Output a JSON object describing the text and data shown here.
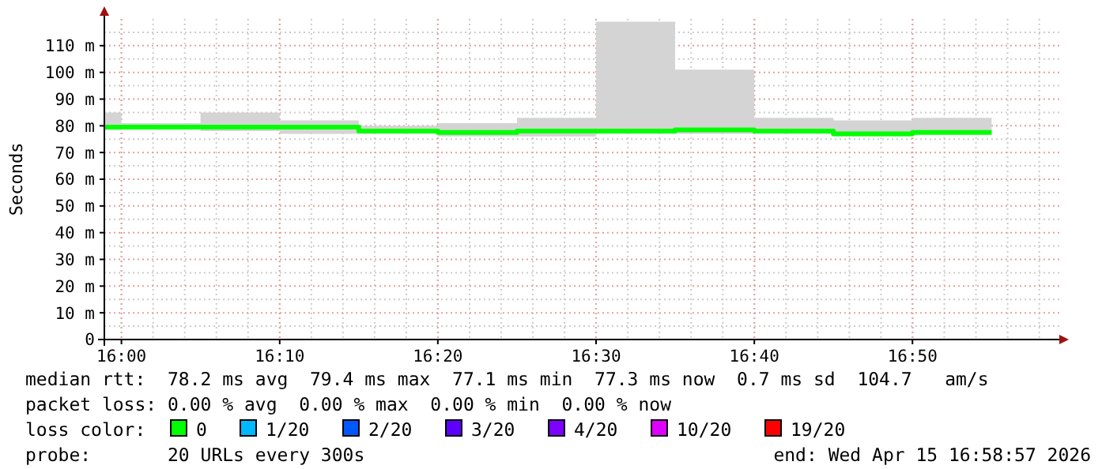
{
  "chart_data": {
    "type": "step",
    "ylabel": "Seconds",
    "legend_title": "loss color:",
    "legend": "bottom",
    "grid": true,
    "x": [
      15.982,
      16.0,
      16.0833,
      16.1667,
      16.25,
      16.3333,
      16.4167,
      16.5,
      16.5833,
      16.6667,
      16.75,
      16.8333,
      16.9167
    ],
    "xlim": [
      15.982,
      16.988
    ],
    "xticks": [
      {
        "value": 16.0,
        "label": "16:00"
      },
      {
        "value": 16.1667,
        "label": "16:10"
      },
      {
        "value": 16.3333,
        "label": "16:20"
      },
      {
        "value": 16.5,
        "label": "16:30"
      },
      {
        "value": 16.6667,
        "label": "16:40"
      },
      {
        "value": 16.8333,
        "label": "16:50"
      }
    ],
    "ylim": [
      0,
      120
    ],
    "yticks": [
      0,
      {
        "value": 10,
        "label": "10 m"
      },
      {
        "value": 20,
        "label": "20 m"
      },
      {
        "value": 30,
        "label": "30 m"
      },
      {
        "value": 40,
        "label": "40 m"
      },
      {
        "value": 50,
        "label": "50 m"
      },
      {
        "value": 60,
        "label": "60 m"
      },
      {
        "value": 70,
        "label": "70 m"
      },
      {
        "value": 80,
        "label": "80 m"
      },
      {
        "value": 90,
        "label": "90 m"
      },
      {
        "value": 100,
        "label": "100 m"
      },
      {
        "value": 110,
        "label": "110 m"
      }
    ],
    "series": [
      {
        "name": "0",
        "color": "#00ff00",
        "values": [
          79.5,
          79.5,
          79.5,
          79.5,
          78,
          77.5,
          78,
          78,
          78.5,
          78,
          77,
          77.5,
          77.5
        ],
        "lower": [
          78.5,
          79,
          78,
          77,
          77,
          76,
          76,
          77,
          77,
          77,
          76,
          77,
          77
        ],
        "upper": [
          85,
          81,
          85,
          82,
          80,
          81,
          83,
          119,
          101,
          83,
          82,
          83,
          83
        ]
      },
      {
        "name": "1/20",
        "color": "#00b8ff",
        "values": [
          null,
          null,
          null,
          null,
          null,
          null,
          null,
          null,
          null,
          null,
          null,
          null,
          null
        ]
      },
      {
        "name": "2/20",
        "color": "#0059ff",
        "values": [
          null,
          null,
          null,
          null,
          null,
          null,
          null,
          null,
          null,
          null,
          null,
          null,
          null
        ]
      },
      {
        "name": "3/20",
        "color": "#5e00ff",
        "values": [
          null,
          null,
          null,
          null,
          null,
          null,
          null,
          null,
          null,
          null,
          null,
          null,
          null
        ]
      },
      {
        "name": "4/20",
        "color": "#7e00ff",
        "values": [
          null,
          null,
          null,
          null,
          null,
          null,
          null,
          null,
          null,
          null,
          null,
          null,
          null
        ]
      },
      {
        "name": "10/20",
        "color": "#dd00ff",
        "values": [
          null,
          null,
          null,
          null,
          null,
          null,
          null,
          null,
          null,
          null,
          null,
          null,
          null
        ]
      },
      {
        "name": "19/20",
        "color": "#ff0000",
        "values": [
          null,
          null,
          null,
          null,
          null,
          null,
          null,
          null,
          null,
          null,
          null,
          null,
          null
        ]
      }
    ],
    "annotations": [
      "median rtt:  78.2 ms avg  79.4 ms max  77.1 ms min  77.3 ms now  0.7 ms sd  104.7   am/s",
      "packet loss: 0.00 % avg  0.00 % max  0.00 % min  0.00 % now",
      "probe:       20 URLs every 300s",
      "end: Wed Apr 15 16:58:57 2026"
    ]
  }
}
